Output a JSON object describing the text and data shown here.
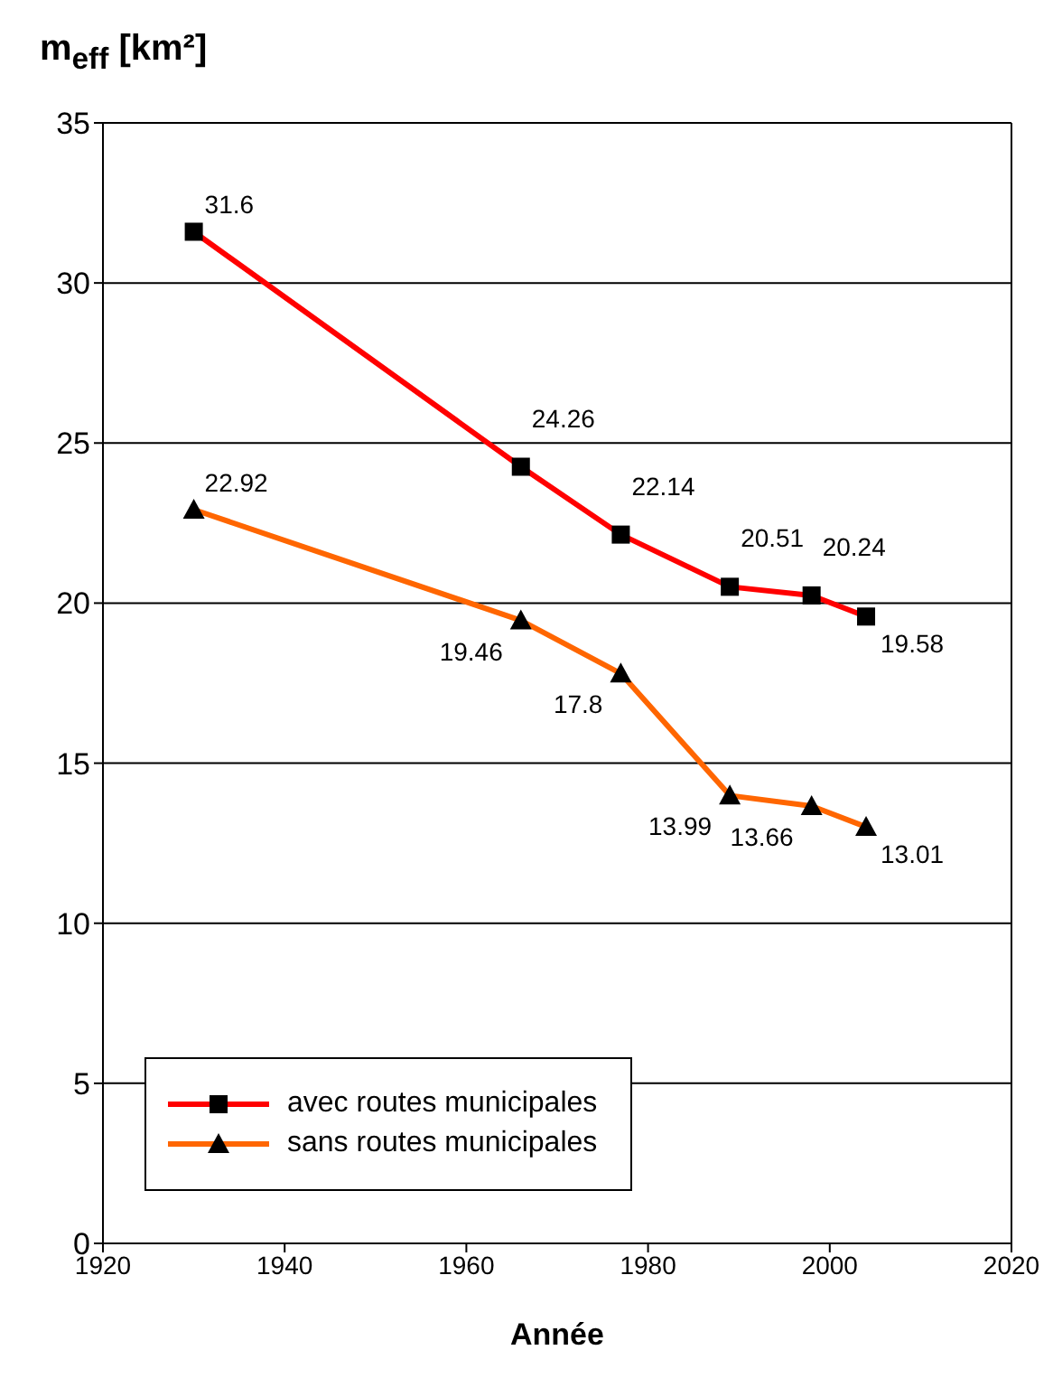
{
  "chart_data": {
    "type": "line",
    "xlabel": "Année",
    "ylabel": "m$_{eff}$ [km²]",
    "x": [
      1930,
      1966,
      1977,
      1989,
      1998,
      2004
    ],
    "series": [
      {
        "name": "avec routes municipales",
        "color": "#ff0000",
        "marker": "square",
        "values": [
          31.6,
          24.26,
          22.14,
          20.51,
          20.24,
          19.58
        ]
      },
      {
        "name": "sans routes municipales",
        "color": "#ff6600",
        "marker": "triangle",
        "values": [
          22.92,
          19.46,
          17.8,
          13.99,
          13.66,
          13.01
        ]
      }
    ],
    "xlim": [
      1920,
      2020
    ],
    "xticks": [
      1920,
      1940,
      1960,
      1980,
      2000,
      2020
    ],
    "ylim": [
      0,
      35
    ],
    "yticks": [
      0,
      5,
      10,
      15,
      20,
      25,
      30,
      35
    ],
    "grid": "y",
    "legend": "bottom left",
    "data_labels": true,
    "line_style": "solid"
  }
}
